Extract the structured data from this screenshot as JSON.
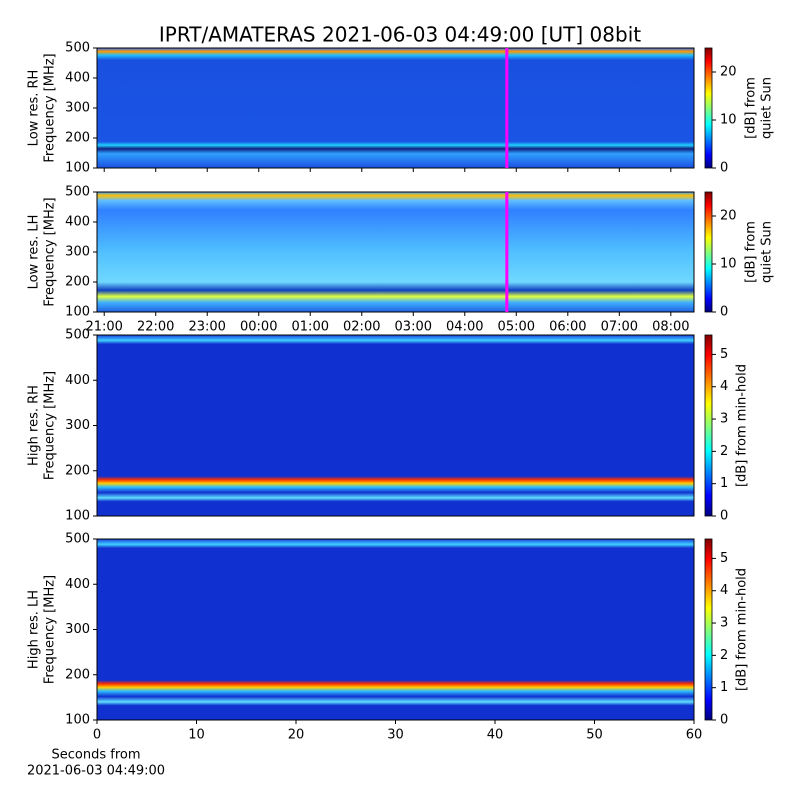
{
  "title": "IPRT/AMATERAS 2021-06-03 04:49:00 [UT]   08bit",
  "chart_data": [
    {
      "type": "heatmap",
      "ylabel": [
        "Low res. RH",
        "Frequency [MHz]"
      ],
      "xlim": [
        -0.14,
        11.45
      ],
      "ylim": [
        100,
        500
      ],
      "yticks": [
        100,
        200,
        300,
        400,
        500
      ],
      "clim": [
        0,
        25
      ],
      "cticks": [
        0,
        10,
        20
      ],
      "clabel": [
        "[dB] from",
        "quiet Sun"
      ],
      "marker_x": 7.8167,
      "marker_color": "#ff00ff"
    },
    {
      "type": "heatmap",
      "ylabel": [
        "Low res. LH",
        "Frequency [MHz]"
      ],
      "xlim": [
        -0.14,
        11.45
      ],
      "ylim": [
        100,
        500
      ],
      "yticks": [
        100,
        200,
        300,
        400,
        500
      ],
      "xticks": [
        {
          "value": 0,
          "label": "21:00"
        },
        {
          "value": 1,
          "label": "22:00"
        },
        {
          "value": 2,
          "label": "23:00"
        },
        {
          "value": 3,
          "label": "00:00"
        },
        {
          "value": 4,
          "label": "01:00"
        },
        {
          "value": 5,
          "label": "02:00"
        },
        {
          "value": 6,
          "label": "03:00"
        },
        {
          "value": 7,
          "label": "04:00"
        },
        {
          "value": 8,
          "label": "05:00"
        },
        {
          "value": 9,
          "label": "06:00"
        },
        {
          "value": 10,
          "label": "07:00"
        },
        {
          "value": 11,
          "label": "08:00"
        }
      ],
      "clim": [
        0,
        25
      ],
      "cticks": [
        0,
        10,
        20
      ],
      "clabel": [
        "[dB] from",
        "quiet Sun"
      ],
      "marker_x": 7.8167,
      "marker_color": "#ff00ff"
    },
    {
      "type": "heatmap",
      "ylabel": [
        "High res. RH",
        "Frequency [MHz]"
      ],
      "xlim": [
        0,
        60
      ],
      "ylim": [
        100,
        500
      ],
      "yticks": [
        100,
        200,
        300,
        400,
        500
      ],
      "clim": [
        0,
        5.6
      ],
      "cticks": [
        0,
        1,
        2,
        3,
        4,
        5
      ],
      "clabel": [
        "[dB] from min-hold"
      ]
    },
    {
      "type": "heatmap",
      "ylabel": [
        "High res. LH",
        "Frequency [MHz]"
      ],
      "xlim": [
        0,
        60
      ],
      "ylim": [
        100,
        500
      ],
      "yticks": [
        100,
        200,
        300,
        400,
        500
      ],
      "xticks": [
        0,
        10,
        20,
        30,
        40,
        50,
        60
      ],
      "xlabel": [
        "Seconds from",
        "2021-06-03 04:49:00"
      ],
      "clim": [
        0,
        5.6
      ],
      "cticks": [
        0,
        1,
        2,
        3,
        4,
        5
      ],
      "clabel": [
        "[dB] from min-hold"
      ]
    }
  ]
}
